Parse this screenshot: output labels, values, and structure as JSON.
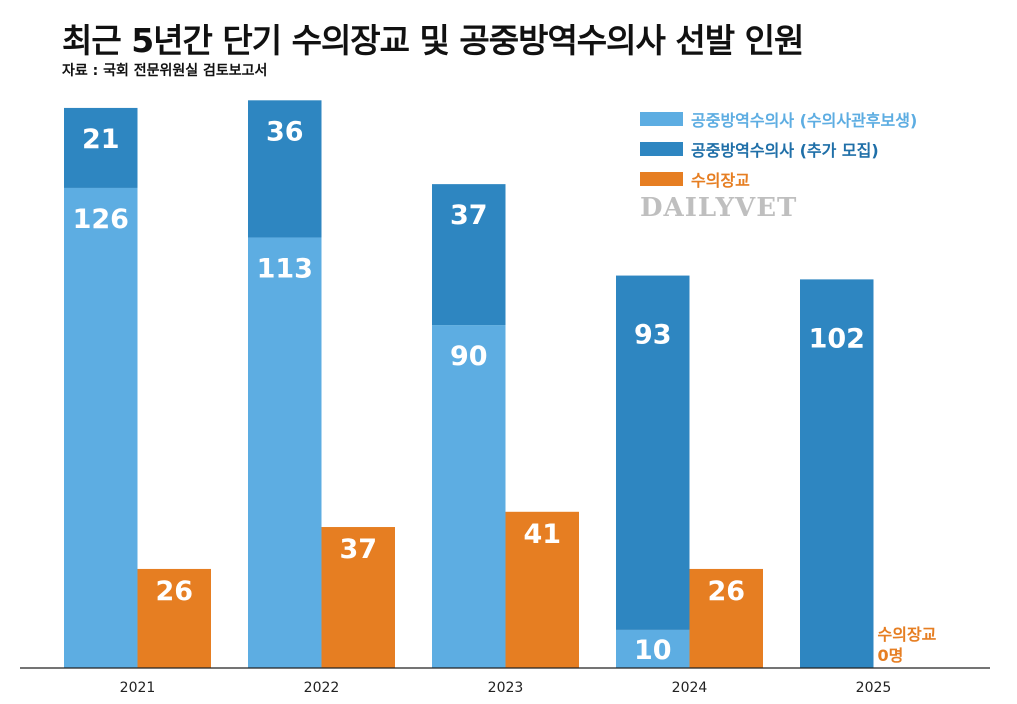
{
  "title": "최근 5년간 단기 수의장교 및 공중방역수의사 선발 인원",
  "source": "자료 : 국회 전문위원실 검토보고서",
  "watermark": "DAILYVET",
  "colors": {
    "light_blue": "#5DADE2",
    "dark_blue": "#2E86C1",
    "orange": "#E67E22",
    "dark_blue_text": "#1F6FA8"
  },
  "chart_data": {
    "type": "bar",
    "stacked_groups": true,
    "categories": [
      "2021",
      "2022",
      "2023",
      "2024",
      "2025"
    ],
    "series": [
      {
        "name": "공중방역수의사 (수의사관후보생)",
        "stack": "a",
        "values": [
          126,
          113,
          90,
          10,
          0
        ]
      },
      {
        "name": "공중방역수의사 (추가 모집)",
        "stack": "a",
        "values": [
          21,
          36,
          37,
          93,
          102
        ]
      },
      {
        "name": "수의장교",
        "stack": "b",
        "values": [
          26,
          37,
          41,
          26,
          0
        ]
      }
    ],
    "annotation": {
      "category": "2025",
      "line1": "수의장교",
      "line2": "0명"
    },
    "ylim": [
      0,
      150
    ],
    "grid": false,
    "legend_position": "top-right"
  }
}
